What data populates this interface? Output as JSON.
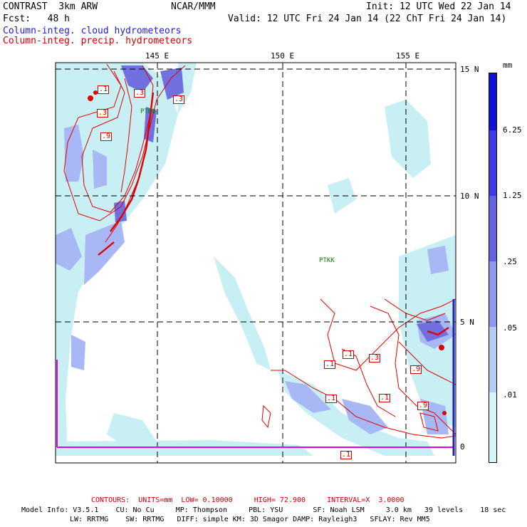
{
  "header": {
    "title": "CONTRAST  3km ARW",
    "center": "NCAR/MMM",
    "init": "Init: 12 UTC Wed 22 Jan 14",
    "fcst": "Fcst:   48 h",
    "valid": "Valid: 12 UTC Fri 24 Jan 14 (22 ChT Fri 24 Jan 14)",
    "field1": "Column-integ. cloud hydrometeors",
    "field2": "Column-integ. precip. hydrometeors"
  },
  "map": {
    "lon_labels": [
      "145 E",
      "150 E",
      "155 E"
    ],
    "lat_labels": [
      "15 N",
      "10 N",
      "5 N",
      "0"
    ],
    "stations": [
      "PTRO",
      "PTKK"
    ],
    "contour_labels": [
      ".1",
      ".3",
      ".3",
      ".3",
      ".9",
      ".1",
      ".1",
      ".3",
      ".1",
      ".9",
      ".1",
      ".9",
      ".1"
    ],
    "colors": {
      "cloud_shade_light": "#c8f0f4",
      "cloud_shade_mid": "#a8b8f4",
      "cloud_shade_dark": "#7070e0",
      "precip_contour": "#e00000",
      "station": "#008000"
    }
  },
  "colorbar": {
    "unit": "mm",
    "labels": [
      "6.25",
      "1.25",
      ".25",
      ".05",
      ".01"
    ],
    "colors": [
      "#ffffff",
      "#d4f4f8",
      "#b4ccf4",
      "#9098ec",
      "#6464e0",
      "#3c3ce8",
      "#1010d8"
    ]
  },
  "footer": {
    "contours": "CONTOURS:  UNITS=mm  LOW= 0.10000     HIGH= 72.900     INTERVAL=X  3.0000",
    "model_line1": "Model Info: V3.5.1    CU: No Cu     MP: Thompson     PBL: YSU       SF: Noah LSM     3.0 km   39 levels    18 sec",
    "model_line2": "LW: RRTMG    SW: RRTMG   DIFF: simple KM: 3D Smagor DAMP: Rayleigh3   SFLAY: Rev MM5"
  }
}
